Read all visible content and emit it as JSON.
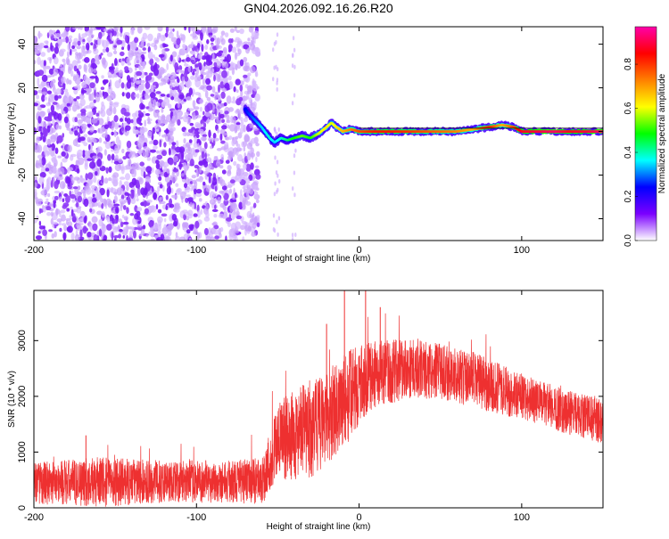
{
  "title": "GN04.2026.092.16.26.R20",
  "chart_data": [
    {
      "type": "heatmap",
      "xlabel": "Height of straight line (km)",
      "ylabel": "Frequency (Hz)",
      "xlim": [
        -200,
        150
      ],
      "ylim": [
        -50,
        48
      ],
      "x_ticks": [
        -200,
        -100,
        0,
        100
      ],
      "x_tick_labels": [
        "-200",
        "-100",
        "0",
        "100"
      ],
      "y_ticks": [
        -40,
        -20,
        0,
        20,
        40
      ],
      "y_tick_labels": [
        "-40",
        "-20",
        "0",
        "20",
        "40"
      ],
      "colorbar": {
        "label": "Normalized spectral amplitude",
        "range": [
          0,
          0.97
        ],
        "ticks": [
          0.0,
          0.2,
          0.4,
          0.6,
          0.8
        ],
        "tick_labels": [
          "0.0",
          "0.2",
          "0.4",
          "0.6",
          "0.8"
        ],
        "colors": [
          "#ffffff",
          "#7b00ff",
          "#0000ff",
          "#00ffff",
          "#00ff00",
          "#ffff00",
          "#ff8000",
          "#ff0000",
          "#ff00aa"
        ]
      },
      "noise_region_x": [
        -200,
        -70
      ],
      "signal_track": {
        "x": [
          -70,
          -65,
          -60,
          -55,
          -52,
          -48,
          -44,
          -40,
          -35,
          -30,
          -25,
          -20,
          -17,
          -14,
          -10,
          -5,
          0,
          10,
          20,
          40,
          60,
          70,
          80,
          88,
          95,
          100,
          110,
          120,
          130,
          140,
          150
        ],
        "freq_hz": [
          10,
          6,
          2,
          -3,
          -5,
          -3,
          -4,
          -3,
          -2,
          -3,
          -1,
          2,
          4,
          2,
          0,
          1,
          0,
          0,
          0,
          0,
          0,
          1,
          2,
          3,
          2,
          0,
          0,
          0,
          0,
          0,
          0
        ],
        "amplitude": [
          0.25,
          0.3,
          0.35,
          0.4,
          0.35,
          0.4,
          0.45,
          0.5,
          0.55,
          0.5,
          0.6,
          0.65,
          0.6,
          0.65,
          0.7,
          0.75,
          0.8,
          0.85,
          0.85,
          0.8,
          0.75,
          0.7,
          0.85,
          0.7,
          0.8,
          0.9,
          0.92,
          0.95,
          0.9,
          0.92,
          0.95
        ]
      }
    },
    {
      "type": "line",
      "xlabel": "Height of straight line (km)",
      "ylabel": "SNR (10 * v/v)",
      "xlim": [
        -200,
        150
      ],
      "ylim": [
        0,
        3900
      ],
      "x_ticks": [
        -200,
        -100,
        0,
        100
      ],
      "x_tick_labels": [
        "-200",
        "-100",
        "0",
        "100"
      ],
      "y_ticks": [
        0,
        1000,
        2000,
        3000
      ],
      "y_tick_labels": [
        "0",
        "1000",
        "2000",
        "3000"
      ],
      "series": [
        {
          "color": "#ee3030",
          "envelope": {
            "x": [
              -200,
              -160,
              -120,
              -80,
              -60,
              -55,
              -50,
              -40,
              -30,
              -20,
              -10,
              0,
              10,
              30,
              50,
              70,
              90,
              110,
              130,
              150
            ],
            "mean": [
              450,
              460,
              470,
              470,
              480,
              800,
              1200,
              1300,
              1400,
              1600,
              1900,
              2200,
              2400,
              2500,
              2450,
              2300,
              2100,
              1900,
              1700,
              1550
            ],
            "spread": [
              380,
              450,
              380,
              380,
              420,
              600,
              700,
              800,
              900,
              800,
              900,
              700,
              600,
              550,
              500,
              500,
              450,
              400,
              400,
              400
            ]
          },
          "spikes": [
            {
              "x": -9,
              "y": 3900
            },
            {
              "x": 4,
              "y": 3900
            },
            {
              "x": 13,
              "y": 3600
            },
            {
              "x": -20,
              "y": 3300
            },
            {
              "x": -168,
              "y": 1300
            }
          ]
        }
      ]
    }
  ]
}
